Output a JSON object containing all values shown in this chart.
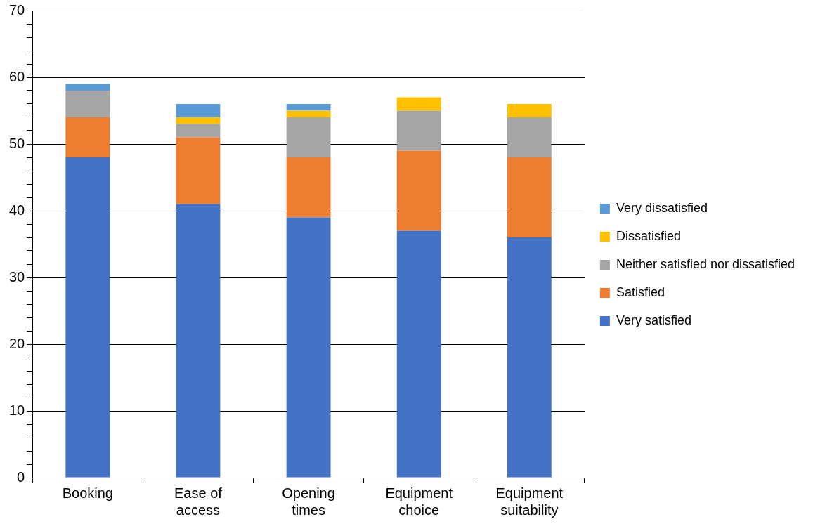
{
  "chart_data": {
    "type": "bar",
    "stacked": true,
    "categories": [
      "Booking",
      "Ease of access",
      "Opening times",
      "Equipment choice",
      "Equipment suitability"
    ],
    "series": [
      {
        "name": "Very satisfied",
        "color": "#4472c4",
        "values": [
          48,
          41,
          39,
          37,
          36
        ]
      },
      {
        "name": "Satisfied",
        "color": "#ed7d31",
        "values": [
          6,
          10,
          9,
          12,
          12
        ]
      },
      {
        "name": "Neither satisfied nor dissatisfied",
        "color": "#a5a5a5",
        "values": [
          4,
          2,
          6,
          6,
          6
        ]
      },
      {
        "name": "Dissatisfied",
        "color": "#ffc000",
        "values": [
          0,
          1,
          1,
          2,
          2
        ]
      },
      {
        "name": "Very dissatisfied",
        "color": "#5b9bd5",
        "values": [
          1,
          2,
          1,
          0,
          0
        ]
      }
    ],
    "ylim": [
      0,
      70
    ],
    "yticks": [
      0,
      {
        "value": 2,
        "label": null
      },
      {
        "value": 4,
        "label": null
      },
      {
        "value": 6,
        "label": null
      },
      {
        "value": 8,
        "label": null
      },
      10,
      {
        "value": 12,
        "label": null
      },
      {
        "value": 14,
        "label": null
      },
      {
        "value": 16,
        "label": null
      },
      {
        "value": 18,
        "label": null
      },
      20,
      {
        "value": 22,
        "label": null
      },
      {
        "value": 24,
        "label": null
      },
      {
        "value": 26,
        "label": null
      },
      {
        "value": 28,
        "label": null
      },
      30,
      {
        "value": 32,
        "label": null
      },
      {
        "value": 34,
        "label": null
      },
      {
        "value": 36,
        "label": null
      },
      {
        "value": 38,
        "label": null
      },
      40,
      {
        "value": 42,
        "label": null
      },
      {
        "value": 44,
        "label": null
      },
      {
        "value": 46,
        "label": null
      },
      {
        "value": 48,
        "label": null
      },
      50,
      {
        "value": 52,
        "label": null
      },
      {
        "value": 54,
        "label": null
      },
      {
        "value": 56,
        "label": null
      },
      {
        "value": 58,
        "label": null
      },
      60,
      {
        "value": 62,
        "label": null
      },
      {
        "value": 64,
        "label": null
      },
      {
        "value": 66,
        "label": null
      },
      {
        "value": 68,
        "label": null
      },
      70
    ],
    "grid": "y",
    "legend": "right"
  }
}
